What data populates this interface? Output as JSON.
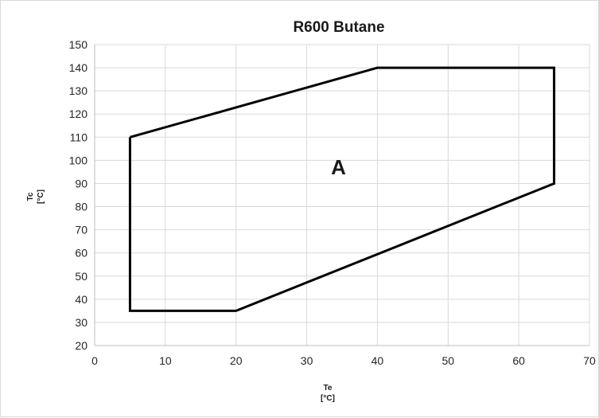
{
  "chart_data": {
    "type": "line",
    "title": "R600 Butane",
    "xlabel": "Te",
    "xunit": "[°C]",
    "ylabel": "Tc",
    "yunit": "[°C]",
    "xlim": [
      0,
      70
    ],
    "ylim": [
      20,
      150
    ],
    "xticks": [
      0,
      10,
      20,
      30,
      40,
      50,
      60,
      70
    ],
    "yticks": [
      20,
      30,
      40,
      50,
      60,
      70,
      80,
      90,
      100,
      110,
      120,
      130,
      140,
      150
    ],
    "grid": true,
    "series": [
      {
        "closed": true,
        "color": "#000000",
        "x": [
          5,
          40,
          65,
          65,
          20,
          5,
          5
        ],
        "y": [
          110,
          140,
          140,
          90,
          35,
          35,
          110
        ]
      }
    ],
    "annotations": [
      {
        "text": "A",
        "x": 34.5,
        "y": 97
      }
    ]
  }
}
